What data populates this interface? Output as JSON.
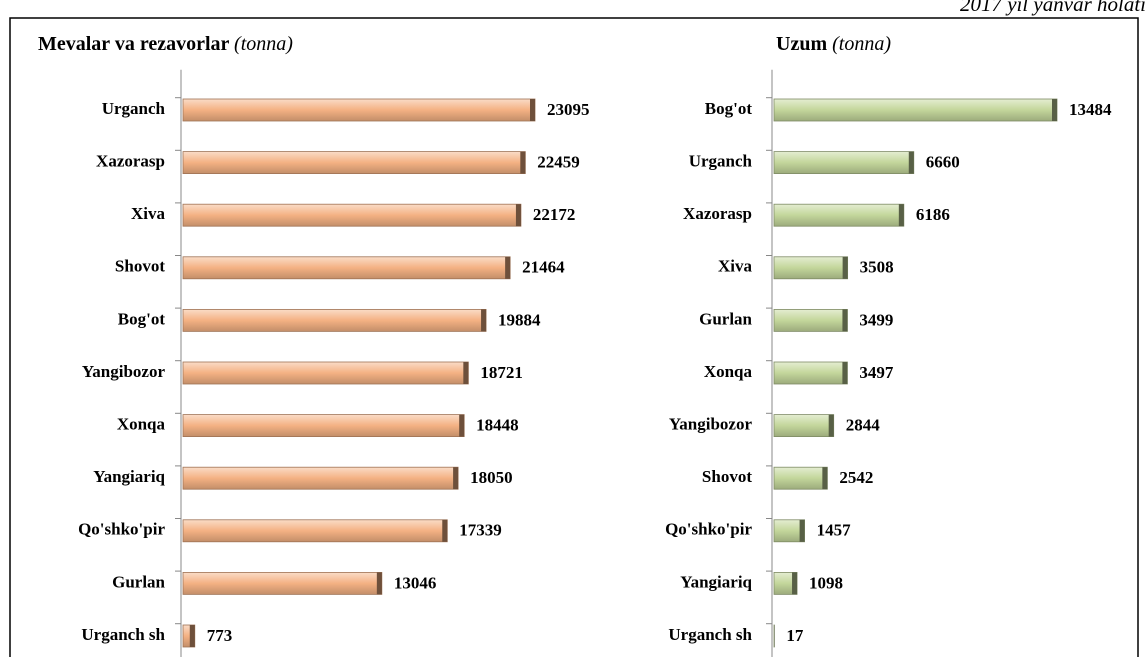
{
  "note": "2017 yil yanvar holati",
  "chart_data": [
    {
      "type": "bar",
      "orientation": "horizontal",
      "title": "Mevalar va rezavorlar",
      "unit": "(tonna)",
      "categories": [
        "Urganch",
        "Xazorasp",
        "Xiva",
        "Shovot",
        "Bog'ot",
        "Yangibozor",
        "Xonqa",
        "Yangiariq",
        "Qo'shko'pir",
        "Gurlan",
        "Urganch sh"
      ],
      "values": [
        23095,
        22459,
        22172,
        21464,
        19884,
        18721,
        18448,
        18050,
        17339,
        13046,
        773
      ],
      "color": "#f4b183"
    },
    {
      "type": "bar",
      "orientation": "horizontal",
      "title": "Uzum",
      "unit": "(tonna)",
      "categories": [
        "Bog'ot",
        "Urganch",
        "Xazorasp",
        "Xiva",
        "Gurlan",
        "Xonqa",
        "Yangibozor",
        "Shovot",
        "Qo'shko'pir",
        "Yangiariq",
        "Urganch sh"
      ],
      "values": [
        13484,
        6660,
        6186,
        3508,
        3499,
        3497,
        2844,
        2542,
        1457,
        1098,
        17
      ],
      "color": "#c3d69b"
    }
  ]
}
